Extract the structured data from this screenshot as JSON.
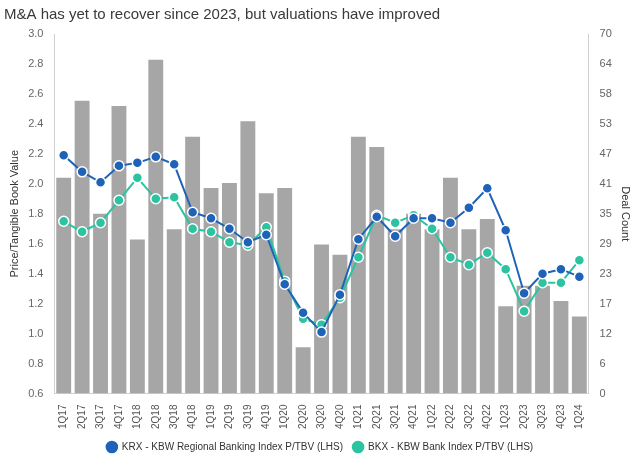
{
  "chart_data": {
    "type": "bar",
    "title": "M&A has yet to recover since 2023, but valuations have improved",
    "y_label": "Price/Tangible Book Value",
    "y2_label": "Deal Count",
    "categories": [
      "1Q17",
      "2Q17",
      "3Q17",
      "4Q17",
      "1Q18",
      "2Q18",
      "3Q18",
      "4Q18",
      "1Q19",
      "2Q19",
      "3Q19",
      "4Q19",
      "1Q20",
      "2Q20",
      "3Q20",
      "4Q20",
      "1Q21",
      "2Q21",
      "3Q21",
      "4Q21",
      "1Q22",
      "2Q22",
      "3Q22",
      "4Q22",
      "1Q23",
      "2Q23",
      "3Q23",
      "4Q23",
      "1Q24"
    ],
    "series": [
      {
        "type": "bar",
        "axis": "y2",
        "color": "#a6a6a6",
        "values": [
          42,
          57,
          35,
          56,
          30,
          65,
          32,
          50,
          40,
          41,
          53,
          39,
          40,
          9,
          29,
          27,
          50,
          48,
          32,
          35,
          32,
          42,
          32,
          34,
          17,
          21,
          21,
          18,
          15
        ]
      },
      {
        "name": "KRX - KBW Regional Banking Index P/TBV (LHS)",
        "type": "line",
        "color": "#1f63b8",
        "marker": "circle",
        "values": [
          2.19,
          2.08,
          2.01,
          2.12,
          2.14,
          2.18,
          2.13,
          1.81,
          1.77,
          1.7,
          1.61,
          1.66,
          1.33,
          1.14,
          1.01,
          1.26,
          1.63,
          1.78,
          1.65,
          1.77,
          1.77,
          1.74,
          1.84,
          1.97,
          1.69,
          1.27,
          1.4,
          1.43,
          1.38
        ]
      },
      {
        "name": "BKX - KBW Bank Index P/TBV (LHS)",
        "type": "line",
        "color": "#2cc3a0",
        "marker": "circle",
        "values": [
          1.75,
          1.68,
          1.74,
          1.89,
          2.04,
          1.9,
          1.91,
          1.7,
          1.68,
          1.61,
          1.59,
          1.71,
          1.35,
          1.1,
          1.06,
          1.24,
          1.51,
          1.79,
          1.74,
          1.79,
          1.7,
          1.51,
          1.46,
          1.54,
          1.43,
          1.15,
          1.34,
          1.34,
          1.49
        ]
      }
    ],
    "ylim": [
      0.6,
      3.0
    ],
    "yticks": [
      0.6,
      0.8,
      {
        "value": 1,
        "label": "1.0"
      },
      1.2,
      1.4,
      1.6,
      1.8,
      {
        "value": 2,
        "label": "2.0"
      },
      2.2,
      2.4,
      2.6,
      2.8,
      {
        "value": 3,
        "label": "3.0"
      }
    ],
    "y2lim": [
      0,
      70
    ],
    "y2ticks": [
      0,
      {
        "value": 5.83,
        "label": "6"
      },
      {
        "value": 11.67,
        "label": "12"
      },
      {
        "value": 17.45,
        "label": "17"
      },
      {
        "value": 23.33,
        "label": "23"
      },
      {
        "value": 29.17,
        "label": "29"
      },
      35,
      {
        "value": 40.83,
        "label": "41"
      },
      {
        "value": 46.67,
        "label": "47"
      },
      {
        "value": 52.5,
        "label": "53"
      },
      {
        "value": 58.33,
        "label": "58"
      },
      {
        "value": 64.17,
        "label": "64"
      },
      70
    ],
    "grid": false,
    "legend": "bottom"
  }
}
